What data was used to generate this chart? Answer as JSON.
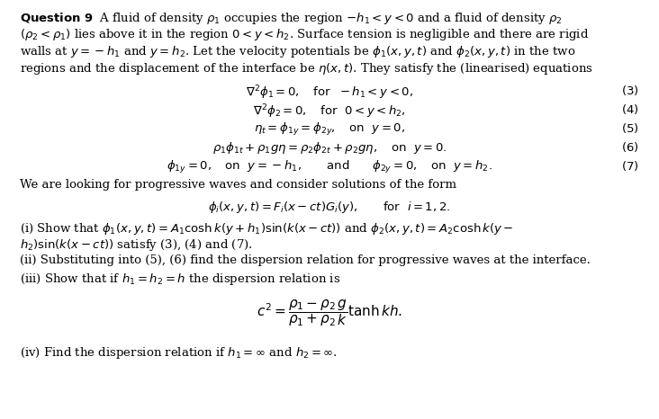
{
  "background_color": "#ffffff",
  "fig_width": 7.32,
  "fig_height": 4.66,
  "dpi": 100,
  "text_color": "#000000",
  "font_size_body": 9.5
}
